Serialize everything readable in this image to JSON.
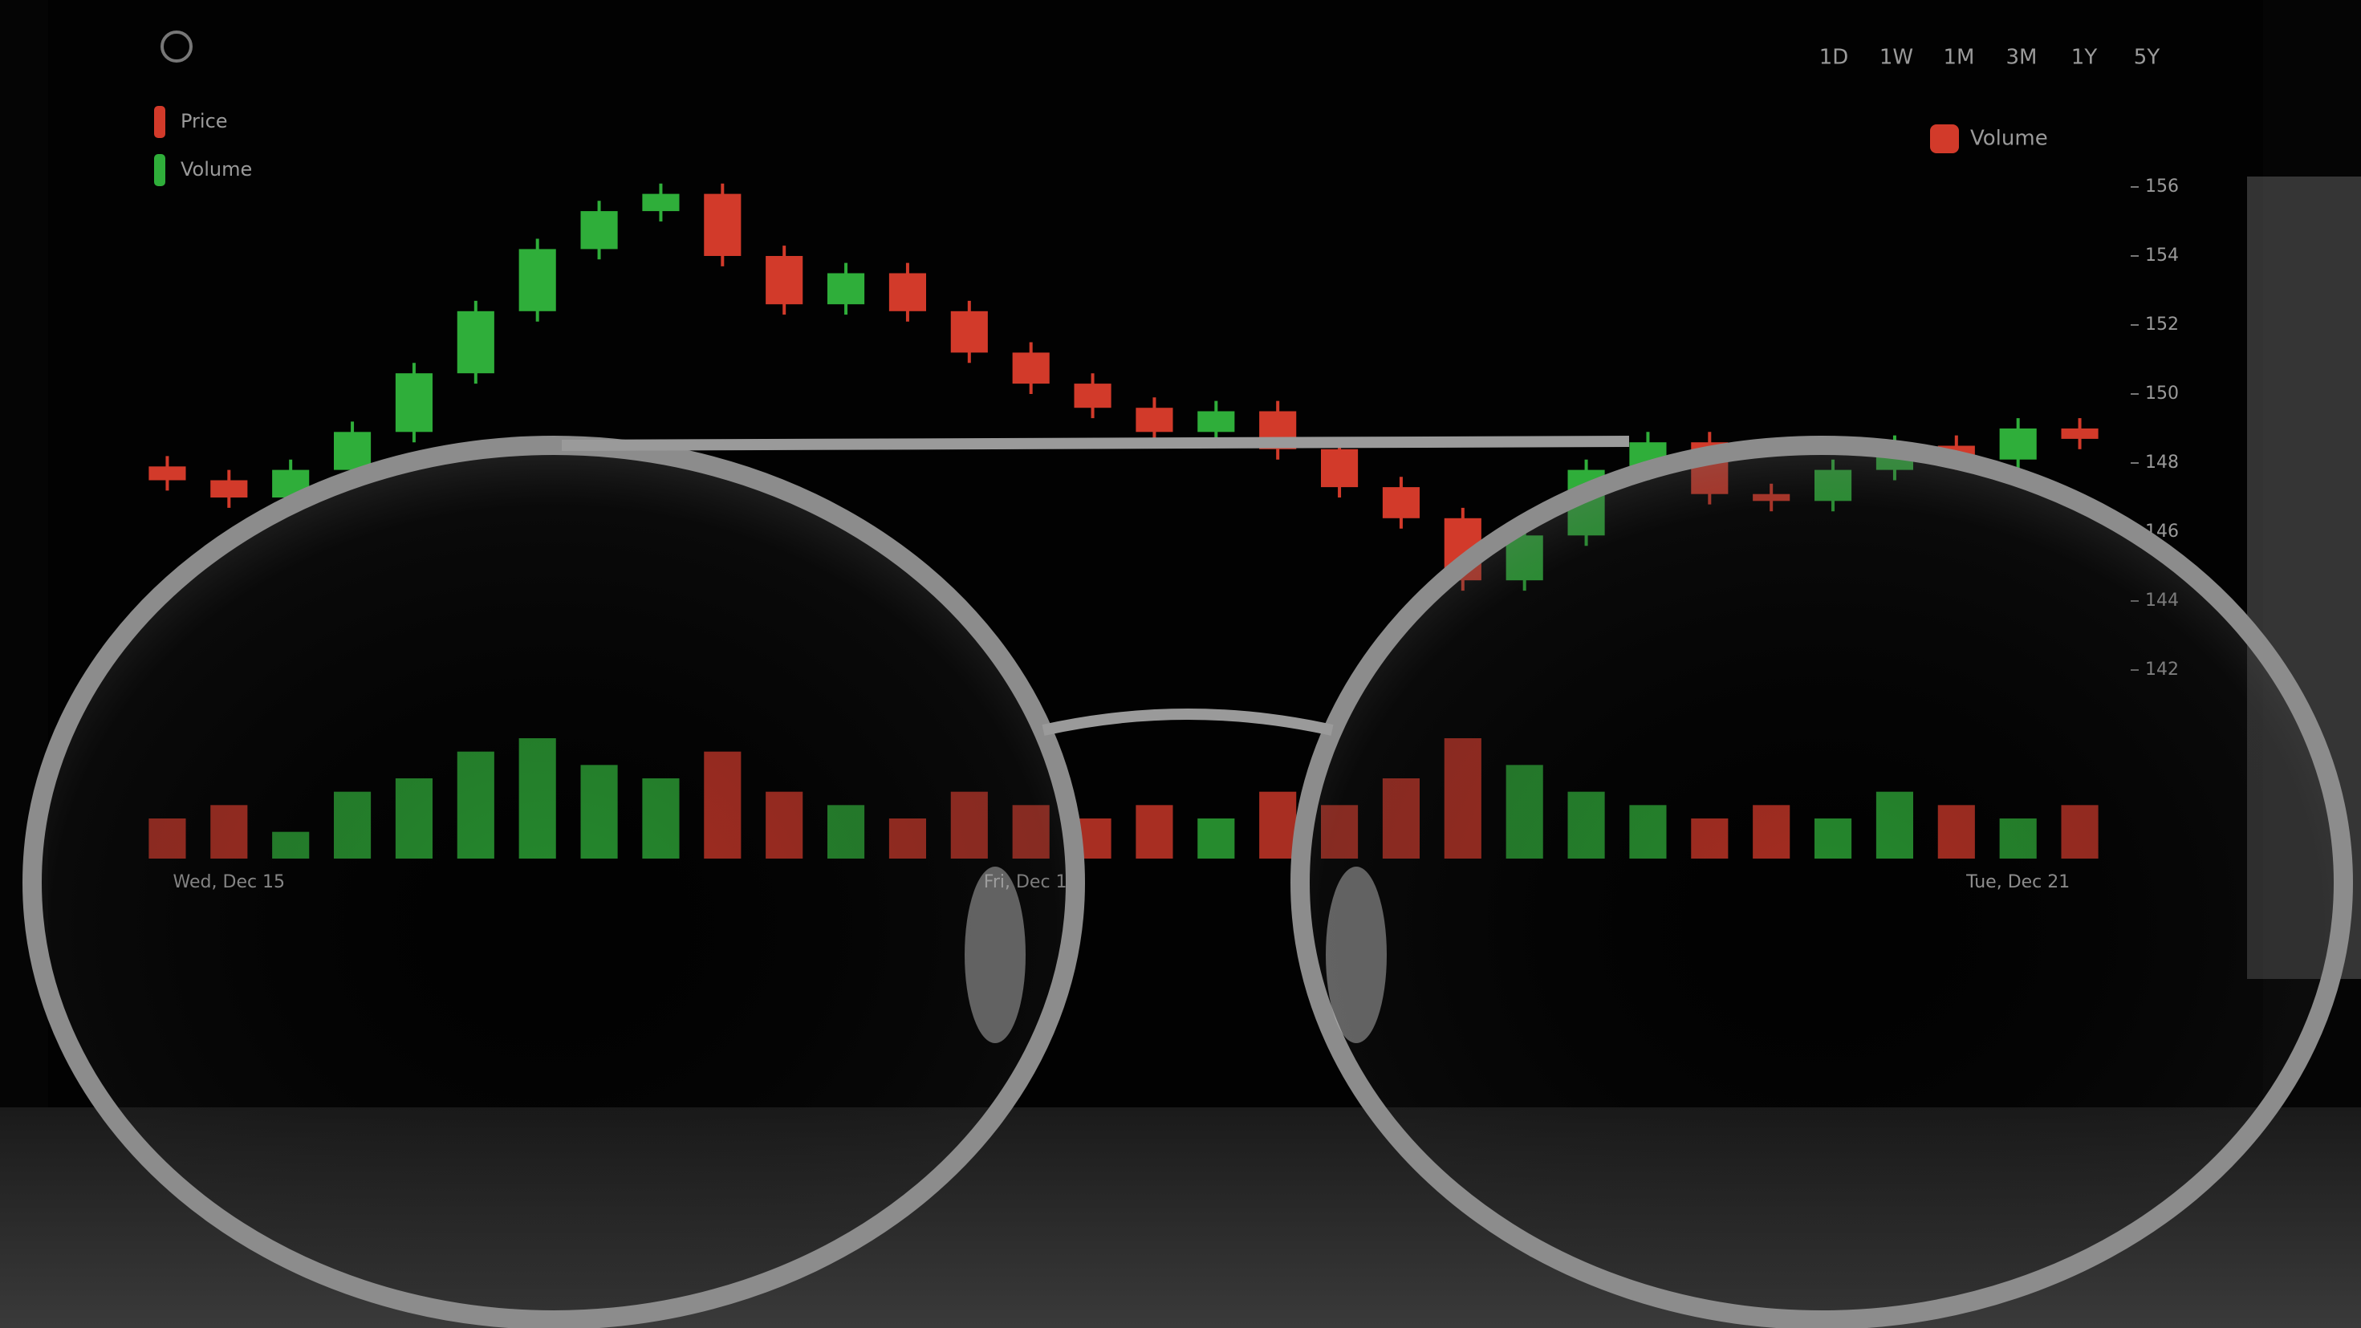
{
  "screen": {
    "legend": [
      "Price",
      "Volume"
    ],
    "timeframes": [
      "1D",
      "1W",
      "1M",
      "3M",
      "1Y",
      "5Y"
    ],
    "volume_toggle": "Volume",
    "chart": {
      "type": "candlestick",
      "categories": [
        null,
        "Wed, Dec 15",
        null,
        null,
        null,
        null,
        null,
        null,
        null,
        null,
        null,
        null,
        null,
        null,
        "Fri, Dec 17",
        null,
        null,
        null,
        null,
        null,
        null,
        null,
        null,
        null,
        null,
        null,
        null,
        null,
        null,
        null,
        "Tue, Dec 21",
        null
      ],
      "open": [
        147.9,
        147.5,
        147.0,
        147.8,
        148.9,
        150.6,
        152.4,
        154.2,
        155.3,
        155.8,
        154.0,
        152.6,
        153.5,
        152.4,
        151.2,
        150.3,
        149.6,
        148.9,
        149.5,
        148.4,
        147.3,
        146.4,
        144.6,
        145.9,
        147.8,
        148.6,
        147.1,
        146.9,
        147.8,
        148.5,
        148.1,
        149.0
      ],
      "high": [
        148.2,
        147.8,
        148.1,
        149.2,
        150.9,
        152.7,
        154.5,
        155.6,
        156.1,
        156.1,
        154.3,
        153.8,
        153.8,
        152.7,
        151.5,
        150.6,
        149.9,
        149.8,
        149.8,
        148.7,
        147.6,
        146.7,
        146.2,
        148.1,
        148.9,
        148.9,
        147.4,
        148.1,
        148.8,
        148.8,
        149.3,
        149.3
      ],
      "low": [
        147.2,
        146.7,
        146.7,
        147.5,
        148.6,
        150.3,
        152.1,
        153.9,
        155.0,
        153.7,
        152.3,
        152.3,
        152.1,
        150.9,
        150.0,
        149.3,
        148.6,
        148.6,
        148.1,
        147.0,
        146.1,
        144.3,
        144.3,
        145.6,
        147.5,
        146.8,
        146.6,
        146.6,
        147.5,
        147.8,
        147.8,
        148.4
      ],
      "close": [
        147.5,
        147.0,
        147.8,
        148.9,
        150.6,
        152.4,
        154.2,
        155.3,
        155.8,
        154.0,
        152.6,
        153.5,
        152.4,
        151.2,
        150.3,
        149.6,
        148.9,
        149.5,
        148.4,
        147.3,
        146.4,
        144.6,
        145.9,
        147.8,
        148.6,
        147.1,
        146.9,
        147.8,
        148.5,
        148.1,
        149.0,
        148.7
      ],
      "volume": [
        3,
        4,
        2,
        5,
        6,
        8,
        9,
        7,
        6,
        8,
        5,
        4,
        3,
        5,
        4,
        3,
        4,
        3,
        5,
        4,
        6,
        9,
        7,
        5,
        4,
        3,
        4,
        3,
        5,
        4,
        3,
        4
      ],
      "ylim": [
        141,
        157
      ],
      "yticks": [
        142,
        144,
        146,
        148,
        150,
        152,
        154,
        156
      ],
      "up_color": "#2fae3a",
      "down_color": "#d23a2a"
    }
  }
}
